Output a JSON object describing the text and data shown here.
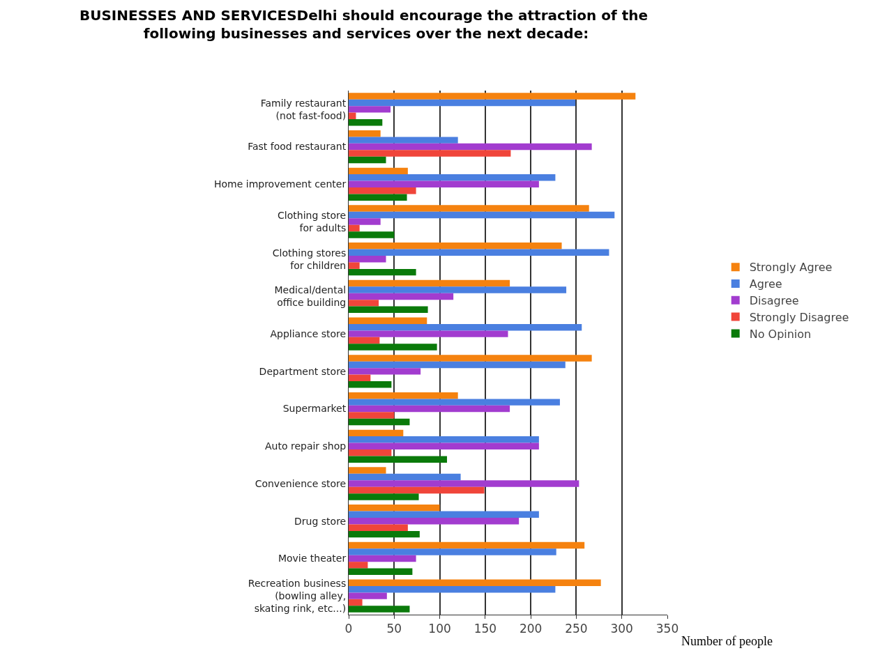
{
  "chart_data": {
    "type": "bar",
    "orientation": "horizontal",
    "title": "BUSINESSES AND SERVICESDelhi should encourage the attraction of the following businesses and services over the next decade:",
    "xlabel": "Number of people",
    "categories": [
      "Family restaurant\n(not fast-food)",
      "Fast food restaurant",
      "Home improvement center",
      "Clothing store\nfor adults",
      "Clothing stores\nfor children",
      "Medical/dental\noffice building",
      "Appliance store",
      "Department store",
      "Supermarket",
      "Auto repair shop",
      "Convenience store",
      "Drug store",
      "Movie theater",
      "Recreation business\n(bowling alley,\nskating rink, etc...)"
    ],
    "series": [
      {
        "name": "Strongly Agree",
        "color": "#f5820f",
        "values": [
          315,
          35,
          65,
          264,
          234,
          177,
          86,
          267,
          120,
          60,
          41,
          100,
          259,
          277
        ]
      },
      {
        "name": "Agree",
        "color": "#4a7fe0",
        "values": [
          249,
          120,
          227,
          292,
          286,
          239,
          256,
          238,
          232,
          209,
          123,
          209,
          228,
          227
        ]
      },
      {
        "name": "Disagree",
        "color": "#a23ccf",
        "values": [
          46,
          267,
          209,
          35,
          41,
          115,
          175,
          79,
          177,
          209,
          253,
          187,
          74,
          42
        ]
      },
      {
        "name": "Strongly Disagree",
        "color": "#f0453a",
        "values": [
          8,
          178,
          74,
          12,
          12,
          33,
          34,
          24,
          50,
          47,
          149,
          65,
          21,
          15
        ]
      },
      {
        "name": "No Opinion",
        "color": "#0a7a0a",
        "values": [
          37,
          41,
          64,
          50,
          74,
          87,
          97,
          47,
          67,
          108,
          77,
          78,
          70,
          67
        ]
      }
    ],
    "xlim": [
      0,
      350
    ],
    "xticks": [
      0,
      50,
      100,
      150,
      200,
      250,
      300,
      350
    ],
    "grid": "x",
    "legend": "right"
  }
}
